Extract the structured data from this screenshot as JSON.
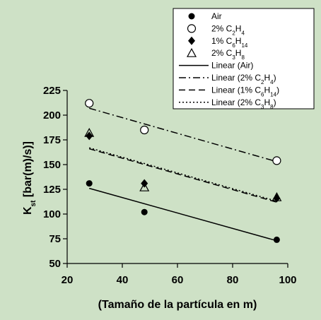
{
  "chart_data": {
    "type": "scatter",
    "xlabel": "(Tamaño de la partícula en m)",
    "ylabel": {
      "main": "K",
      "sub": "st",
      "rest": " [bar(m)/s)]"
    },
    "xlim": [
      20,
      100
    ],
    "ylim": [
      50,
      225
    ],
    "xticks": [
      20,
      40,
      60,
      80,
      100
    ],
    "yticks": [
      50,
      75,
      100,
      125,
      150,
      175,
      200,
      225
    ],
    "grid": false,
    "legend_position": "top-right",
    "series": [
      {
        "name": {
          "pre": "Air",
          "sub": "",
          "post": ""
        },
        "marker": "filled-circle",
        "x": [
          28,
          48,
          96
        ],
        "y": [
          131,
          102,
          74
        ]
      },
      {
        "name": {
          "pre": "2% C",
          "sub": "2",
          "mid": "H",
          "sub2": "4"
        },
        "marker": "open-circle",
        "x": [
          28,
          48,
          96
        ],
        "y": [
          212,
          185,
          154
        ]
      },
      {
        "name": {
          "pre": "1% C",
          "sub": "6",
          "mid": "H",
          "sub2": "14"
        },
        "marker": "filled-diamond",
        "x": [
          28,
          48,
          96
        ],
        "y": [
          179,
          131,
          116
        ]
      },
      {
        "name": {
          "pre": "2% C",
          "sub": "3",
          "mid": "H",
          "sub2": "8"
        },
        "marker": "open-triangle",
        "x": [
          28,
          48,
          96
        ],
        "y": [
          182,
          127,
          117
        ]
      }
    ],
    "fits": [
      {
        "name": {
          "pre": "Linear (Air)",
          "sub": "",
          "mid": "",
          "sub2": "",
          "post": ""
        },
        "style": "solid",
        "x": [
          28,
          96
        ],
        "y": [
          126,
          73
        ]
      },
      {
        "name": {
          "pre": "Linear (2% C",
          "sub": "2",
          "mid": "H",
          "sub2": "4",
          "post": ")"
        },
        "style": "dashdot",
        "x": [
          28,
          96
        ],
        "y": [
          207,
          153
        ]
      },
      {
        "name": {
          "pre": "Linear (1% C",
          "sub": "6",
          "mid": "H",
          "sub2": "14",
          "post": ")"
        },
        "style": "dashed",
        "x": [
          28,
          96
        ],
        "y": [
          166,
          112
        ]
      },
      {
        "name": {
          "pre": "Linear (2% C",
          "sub": "3",
          "mid": "H",
          "sub2": "8",
          "post": ")"
        },
        "style": "dotted",
        "x": [
          28,
          96
        ],
        "y": [
          167,
          113
        ]
      }
    ]
  }
}
